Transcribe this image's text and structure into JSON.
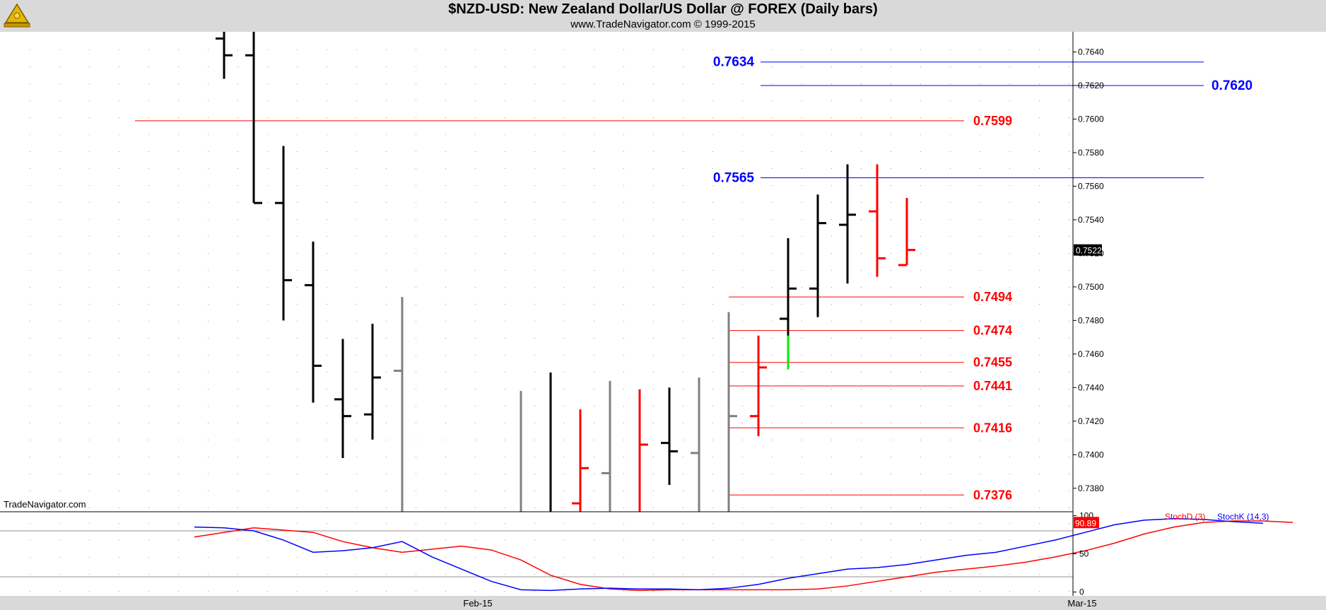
{
  "header": {
    "title": "$NZD-USD:  New Zealand Dollar/US Dollar @ FOREX  (Daily bars)",
    "subtitle": "www.TradeNavigator.com © 1999-2015",
    "logo_icon": "sextant-logo-icon"
  },
  "watermark": "TradeNavigator.com",
  "colors": {
    "header_bg": "#d9d9d9",
    "bar_black": "#000000",
    "bar_gray": "#808080",
    "bar_red": "#ff0000",
    "bar_green": "#00ee00",
    "level_blue": "#0000ff",
    "level_red": "#ff0000",
    "stoch_d": "#ff0000",
    "stoch_k": "#0000ff"
  },
  "chart_data": [
    {
      "type": "ohlc",
      "title": "$NZD-USD:  New Zealand Dollar/US Dollar @ FOREX  (Daily bars)",
      "ylim": [
        0.7366,
        0.7652
      ],
      "y_ticks": [
        "0.7380",
        "0.7400",
        "0.7420",
        "0.7440",
        "0.7460",
        "0.7480",
        "0.7500",
        "0.7520",
        "0.7540",
        "0.7560",
        "0.7580",
        "0.7600",
        "0.7620",
        "0.7640"
      ],
      "x_labels": [
        "Feb-15",
        "Mar-15"
      ],
      "last_price": "0.7522",
      "bars": [
        {
          "o": 0.7648,
          "h": 0.7652,
          "l": 0.7624,
          "c": 0.7638,
          "color": "black"
        },
        {
          "o": 0.7638,
          "h": 0.7652,
          "l": 0.755,
          "c": 0.755,
          "color": "black"
        },
        {
          "o": 0.755,
          "h": 0.7584,
          "l": 0.748,
          "c": 0.7504,
          "color": "black"
        },
        {
          "o": 0.7501,
          "h": 0.7527,
          "l": 0.7431,
          "c": 0.7453,
          "color": "black"
        },
        {
          "o": 0.7433,
          "h": 0.7469,
          "l": 0.7398,
          "c": 0.7423,
          "color": "black"
        },
        {
          "o": 0.7424,
          "h": 0.7478,
          "l": 0.7409,
          "c": 0.7446,
          "color": "black"
        },
        {
          "o": 0.745,
          "h": 0.7494,
          "l": 0.7366,
          "c": 0.7366,
          "color": "gray"
        },
        {
          "o": null,
          "h": null,
          "l": null,
          "c": null,
          "color": "none"
        },
        {
          "o": null,
          "h": null,
          "l": null,
          "c": null,
          "color": "none"
        },
        {
          "o": null,
          "h": null,
          "l": null,
          "c": null,
          "color": "none"
        },
        {
          "o": 0.7366,
          "h": 0.7438,
          "l": 0.7366,
          "c": 0.7366,
          "color": "gray"
        },
        {
          "o": 0.7366,
          "h": 0.7449,
          "l": 0.7366,
          "c": 0.7366,
          "color": "black"
        },
        {
          "o": 0.7371,
          "h": 0.7427,
          "l": 0.7366,
          "c": 0.7392,
          "color": "red"
        },
        {
          "o": 0.7389,
          "h": 0.7444,
          "l": 0.7366,
          "c": 0.7366,
          "color": "gray"
        },
        {
          "o": 0.7366,
          "h": 0.7439,
          "l": 0.7366,
          "c": 0.7406,
          "color": "red"
        },
        {
          "o": 0.7407,
          "h": 0.744,
          "l": 0.7382,
          "c": 0.7402,
          "color": "black"
        },
        {
          "o": 0.7401,
          "h": 0.7446,
          "l": 0.7366,
          "c": 0.7366,
          "color": "gray"
        },
        {
          "o": 0.7366,
          "h": 0.7485,
          "l": 0.7366,
          "c": 0.7423,
          "color": "gray"
        },
        {
          "o": 0.7423,
          "h": 0.7471,
          "l": 0.7411,
          "c": 0.7452,
          "color": "red"
        },
        {
          "o": 0.7481,
          "h": 0.7529,
          "l": 0.7451,
          "c": 0.7499,
          "color": "black",
          "green_low_from": 0.7471
        },
        {
          "o": 0.7499,
          "h": 0.7555,
          "l": 0.7482,
          "c": 0.7538,
          "color": "black"
        },
        {
          "o": 0.7537,
          "h": 0.7573,
          "l": 0.7502,
          "c": 0.7543,
          "color": "black"
        },
        {
          "o": 0.7545,
          "h": 0.7573,
          "l": 0.7506,
          "c": 0.7517,
          "color": "red"
        },
        {
          "o": 0.7513,
          "h": 0.7553,
          "l": 0.7513,
          "c": 0.7522,
          "color": "red"
        }
      ],
      "levels": [
        {
          "value": 0.7634,
          "label": "0.7634",
          "color": "blue",
          "label_side": "left"
        },
        {
          "value": 0.762,
          "label": "0.7620",
          "color": "blue",
          "label_side": "right"
        },
        {
          "value": 0.7599,
          "label": "0.7599",
          "color": "red",
          "label_side": "right"
        },
        {
          "value": 0.7565,
          "label": "0.7565",
          "color": "blue",
          "label_side": "left"
        },
        {
          "value": 0.7494,
          "label": "0.7494",
          "color": "red",
          "label_side": "right"
        },
        {
          "value": 0.7474,
          "label": "0.7474",
          "color": "red",
          "label_side": "right"
        },
        {
          "value": 0.7455,
          "label": "0.7455",
          "color": "red",
          "label_side": "right"
        },
        {
          "value": 0.7441,
          "label": "0.7441",
          "color": "red",
          "label_side": "right"
        },
        {
          "value": 0.7416,
          "label": "0.7416",
          "color": "red",
          "label_side": "right"
        },
        {
          "value": 0.7376,
          "label": "0.7376",
          "color": "red",
          "label_side": "right"
        }
      ]
    },
    {
      "type": "line",
      "legend": [
        "StochD (3)",
        "StochK (14,3)"
      ],
      "ylim": [
        -5,
        105
      ],
      "y_ticks": [
        "0",
        "50",
        "100"
      ],
      "reference_lines": [
        20,
        80
      ],
      "last_value": "90.89",
      "series": [
        {
          "name": "StochD (3)",
          "color": "red",
          "points": [
            [
              -1,
              72
            ],
            [
              1,
              84
            ],
            [
              3,
              78
            ],
            [
              4,
              66
            ],
            [
              5,
              58
            ],
            [
              6,
              52
            ],
            [
              7,
              56
            ],
            [
              8,
              60
            ],
            [
              9,
              55
            ],
            [
              10,
              42
            ],
            [
              11,
              22
            ],
            [
              12,
              10
            ],
            [
              13,
              4
            ],
            [
              14,
              2
            ],
            [
              15,
              3
            ],
            [
              16,
              3
            ],
            [
              17,
              3
            ],
            [
              18,
              3
            ],
            [
              19,
              3
            ],
            [
              20,
              4
            ],
            [
              21,
              8
            ],
            [
              22,
              14
            ],
            [
              23,
              20
            ],
            [
              24,
              26
            ],
            [
              25,
              30
            ],
            [
              26,
              34
            ],
            [
              27,
              39
            ],
            [
              28,
              46
            ],
            [
              29,
              54
            ],
            [
              30,
              64
            ],
            [
              31,
              76
            ],
            [
              32,
              85
            ],
            [
              33,
              91
            ],
            [
              34,
              93
            ],
            [
              35,
              93
            ],
            [
              36,
              91
            ]
          ]
        },
        {
          "name": "StochK (14,3)",
          "color": "blue",
          "points": [
            [
              -1,
              85
            ],
            [
              0,
              84
            ],
            [
              1,
              80
            ],
            [
              2,
              68
            ],
            [
              3,
              52
            ],
            [
              4,
              54
            ],
            [
              5,
              58
            ],
            [
              6,
              66
            ],
            [
              7,
              46
            ],
            [
              8,
              30
            ],
            [
              9,
              14
            ],
            [
              10,
              3
            ],
            [
              11,
              2
            ],
            [
              12,
              4
            ],
            [
              13,
              5
            ],
            [
              14,
              4
            ],
            [
              15,
              4
            ],
            [
              16,
              3
            ],
            [
              17,
              5
            ],
            [
              18,
              10
            ],
            [
              19,
              18
            ],
            [
              20,
              24
            ],
            [
              21,
              30
            ],
            [
              22,
              32
            ],
            [
              23,
              36
            ],
            [
              24,
              42
            ],
            [
              25,
              48
            ],
            [
              26,
              52
            ],
            [
              27,
              60
            ],
            [
              28,
              68
            ],
            [
              29,
              78
            ],
            [
              30,
              88
            ],
            [
              31,
              94
            ],
            [
              32,
              96
            ],
            [
              33,
              95
            ],
            [
              34,
              92
            ],
            [
              35,
              90
            ]
          ]
        }
      ]
    }
  ]
}
